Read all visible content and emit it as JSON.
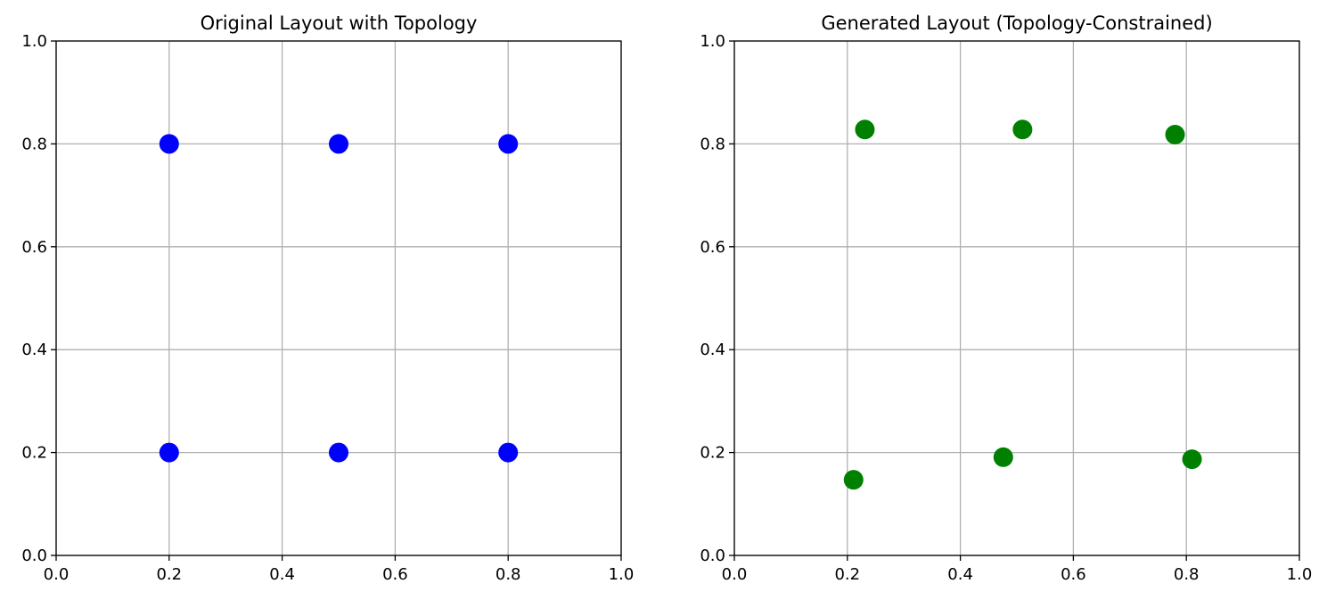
{
  "chart_data": [
    {
      "type": "scatter",
      "title": "Original Layout with Topology",
      "xlabel": "",
      "ylabel": "",
      "xlim": [
        0.0,
        1.0
      ],
      "ylim": [
        0.0,
        1.0
      ],
      "xticks": [
        "0.0",
        "0.2",
        "0.4",
        "0.6",
        "0.8",
        "1.0"
      ],
      "yticks": [
        "0.0",
        "0.2",
        "0.4",
        "0.6",
        "0.8",
        "1.0"
      ],
      "grid": true,
      "color": "#0000ff",
      "points": [
        {
          "x": 0.2,
          "y": 0.8
        },
        {
          "x": 0.5,
          "y": 0.8
        },
        {
          "x": 0.8,
          "y": 0.8
        },
        {
          "x": 0.2,
          "y": 0.2
        },
        {
          "x": 0.5,
          "y": 0.2
        },
        {
          "x": 0.8,
          "y": 0.2
        }
      ]
    },
    {
      "type": "scatter",
      "title": "Generated Layout (Topology-Constrained)",
      "xlabel": "",
      "ylabel": "",
      "xlim": [
        0.0,
        1.0
      ],
      "ylim": [
        0.0,
        1.0
      ],
      "xticks": [
        "0.0",
        "0.2",
        "0.4",
        "0.6",
        "0.8",
        "1.0"
      ],
      "yticks": [
        "0.0",
        "0.2",
        "0.4",
        "0.6",
        "0.8",
        "1.0"
      ],
      "grid": true,
      "color": "#008000",
      "points": [
        {
          "x": 0.231,
          "y": 0.828
        },
        {
          "x": 0.51,
          "y": 0.828
        },
        {
          "x": 0.78,
          "y": 0.818
        },
        {
          "x": 0.211,
          "y": 0.147
        },
        {
          "x": 0.476,
          "y": 0.191
        },
        {
          "x": 0.81,
          "y": 0.187
        }
      ]
    }
  ]
}
